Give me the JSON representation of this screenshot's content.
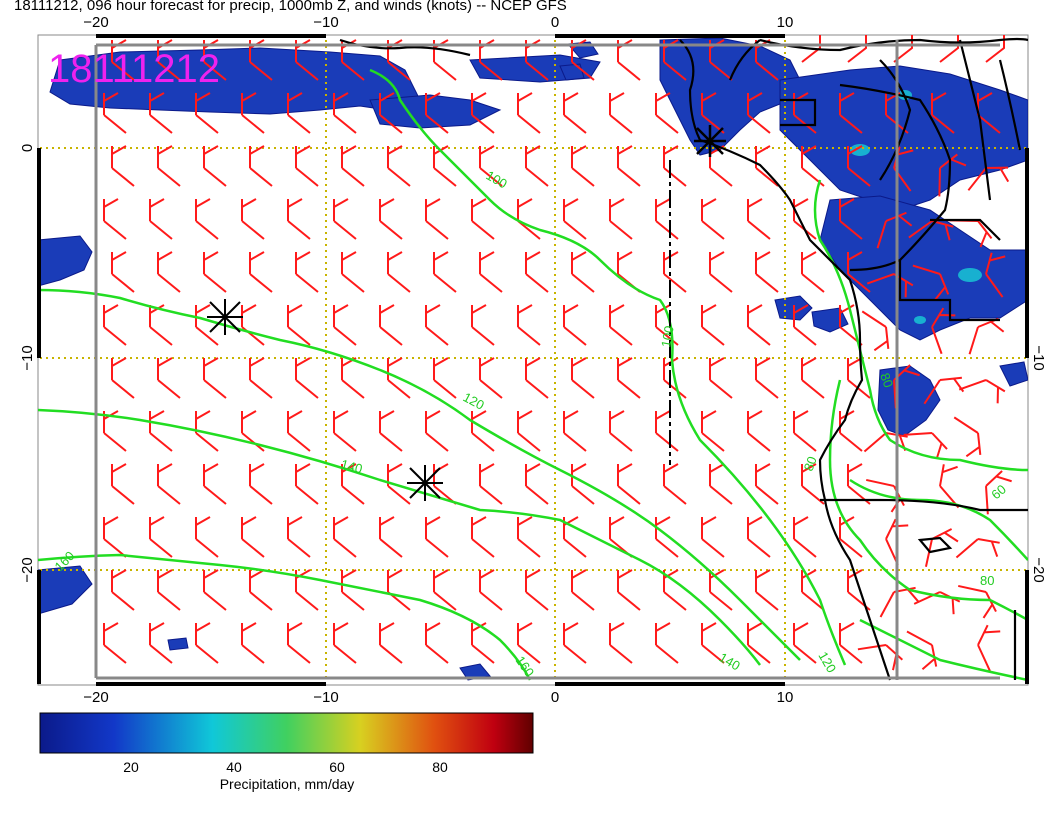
{
  "title": "18111212, 096 hour forecast for precip, 1000mb Z, and winds (knots) -- NCEP GFS",
  "stamp": "18111212",
  "colors": {
    "frame": "#888888",
    "grid": "#c8b400",
    "barb": "#ff1a1a",
    "contour": "#22dd22",
    "coast": "#000000",
    "stamp": "#ee22ee"
  },
  "axes": {
    "top_lon_labels": [
      "−20",
      "−10",
      "0",
      "10"
    ],
    "bottom_lon_labels": [
      "−20",
      "−10",
      "0",
      "10"
    ],
    "left_lat_labels": [
      "0",
      "−10",
      "−20"
    ],
    "right_lat_labels": [
      "−10",
      "−20"
    ]
  },
  "contour_labels": [
    "100",
    "100",
    "120",
    "140",
    "160",
    "160",
    "140",
    "120",
    "80",
    "80",
    "60",
    "80"
  ],
  "colorbar": {
    "label": "Precipitation, mm/day",
    "ticks": [
      "20",
      "40",
      "60",
      "80"
    ],
    "min": 0,
    "max": 100
  }
}
